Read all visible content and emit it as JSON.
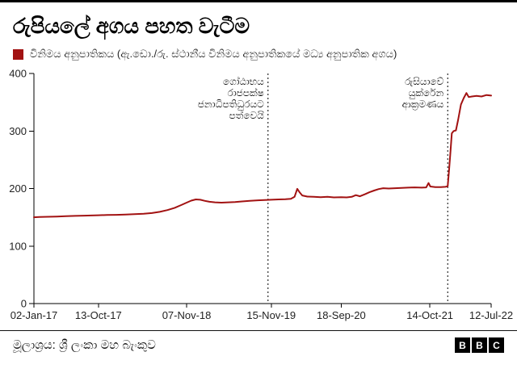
{
  "colors": {
    "accent": "#a21212",
    "axis": "#000000",
    "tick_label": "#222222",
    "annotation_text": "#111111"
  },
  "header": {
    "title": "රුපියලේ අගය පහත වැටීම"
  },
  "legend": {
    "label": "විනිමය අනුපාතිකය (ඇ.ඩො./රු. ස්ථානීය විනිමය අනුපාතිකයේ මධ්‍ය අනුපාතික අගය)"
  },
  "footer": {
    "source": "මූලාශ්‍රය: ශ්‍රී ලංකා මහ බැංකුව",
    "logo_letters": [
      "B",
      "B",
      "C"
    ]
  },
  "chart_data": {
    "type": "line",
    "title": "රුපියලේ අගය පහත වැටීම",
    "xlabel": "",
    "ylabel": "",
    "ylim": [
      0,
      400
    ],
    "grid": false,
    "legend_position": "top-left",
    "y_ticks": [
      0,
      100,
      200,
      300,
      400
    ],
    "x_ticks": [
      {
        "label": "02-Jan-17",
        "f": 0.0
      },
      {
        "label": "13-Oct-17",
        "f": 0.141
      },
      {
        "label": "07-Nov-18",
        "f": 0.334
      },
      {
        "label": "15-Nov-19",
        "f": 0.519
      },
      {
        "label": "18-Sep-20",
        "f": 0.672
      },
      {
        "label": "14-Oct-21",
        "f": 0.866
      },
      {
        "label": "12-Jul-22",
        "f": 1.0
      }
    ],
    "annotations": [
      {
        "f": 0.512,
        "lines": [
          "ගෝඨාභය",
          "රාජපක්ෂ",
          "ජනාධිපතිධුරයට",
          "පත්වෙයි"
        ]
      },
      {
        "f": 0.905,
        "lines": [
          "රුසියාවේ",
          "යුක්රේන",
          "ආක්‍රමණය"
        ]
      }
    ],
    "series": [
      {
        "name": "විනිමය අනුපාතිකය",
        "color": "#a21212",
        "points": [
          [
            0.0,
            150
          ],
          [
            0.012,
            150.4
          ],
          [
            0.03,
            150.9
          ],
          [
            0.05,
            151.3
          ],
          [
            0.07,
            151.9
          ],
          [
            0.09,
            152.4
          ],
          [
            0.11,
            152.8
          ],
          [
            0.125,
            153.1
          ],
          [
            0.141,
            153.5
          ],
          [
            0.16,
            153.9
          ],
          [
            0.18,
            154.3
          ],
          [
            0.2,
            154.7
          ],
          [
            0.22,
            155.3
          ],
          [
            0.24,
            156.1
          ],
          [
            0.258,
            157.4
          ],
          [
            0.275,
            159.5
          ],
          [
            0.292,
            162.5
          ],
          [
            0.308,
            166.5
          ],
          [
            0.32,
            170.5
          ],
          [
            0.334,
            175.5
          ],
          [
            0.344,
            179.0
          ],
          [
            0.354,
            181.0
          ],
          [
            0.364,
            180.5
          ],
          [
            0.374,
            178.5
          ],
          [
            0.384,
            177.0
          ],
          [
            0.396,
            176.0
          ],
          [
            0.41,
            175.5
          ],
          [
            0.425,
            176.0
          ],
          [
            0.44,
            176.5
          ],
          [
            0.455,
            177.5
          ],
          [
            0.472,
            178.5
          ],
          [
            0.49,
            179.5
          ],
          [
            0.505,
            180.0
          ],
          [
            0.519,
            180.5
          ],
          [
            0.535,
            181.0
          ],
          [
            0.55,
            181.5
          ],
          [
            0.562,
            182.0
          ],
          [
            0.57,
            185.5
          ],
          [
            0.576,
            199.5
          ],
          [
            0.581,
            193.5
          ],
          [
            0.587,
            188.0
          ],
          [
            0.598,
            186.0
          ],
          [
            0.612,
            185.5
          ],
          [
            0.627,
            185.0
          ],
          [
            0.642,
            185.5
          ],
          [
            0.656,
            184.5
          ],
          [
            0.672,
            185.0
          ],
          [
            0.684,
            184.5
          ],
          [
            0.695,
            185.5
          ],
          [
            0.704,
            188.5
          ],
          [
            0.713,
            186.5
          ],
          [
            0.724,
            190.0
          ],
          [
            0.734,
            193.5
          ],
          [
            0.744,
            196.5
          ],
          [
            0.754,
            199.0
          ],
          [
            0.764,
            200.5
          ],
          [
            0.776,
            200.0
          ],
          [
            0.79,
            200.5
          ],
          [
            0.804,
            201.0
          ],
          [
            0.818,
            201.5
          ],
          [
            0.833,
            202.0
          ],
          [
            0.848,
            201.5
          ],
          [
            0.858,
            202.0
          ],
          [
            0.863,
            209.5
          ],
          [
            0.867,
            203.5
          ],
          [
            0.878,
            202.5
          ],
          [
            0.89,
            202.5
          ],
          [
            0.9,
            203.0
          ],
          [
            0.905,
            204.0
          ],
          [
            0.908,
            232.0
          ],
          [
            0.911,
            263.0
          ],
          [
            0.914,
            296.0
          ],
          [
            0.918,
            300.0
          ],
          [
            0.923,
            301.0
          ],
          [
            0.928,
            320.0
          ],
          [
            0.934,
            346.0
          ],
          [
            0.94,
            357.0
          ],
          [
            0.946,
            366.0
          ],
          [
            0.951,
            359.0
          ],
          [
            0.958,
            360.0
          ],
          [
            0.968,
            361.0
          ],
          [
            0.979,
            360.0
          ],
          [
            0.99,
            362.5
          ],
          [
            1.0,
            361.5
          ]
        ]
      }
    ]
  }
}
